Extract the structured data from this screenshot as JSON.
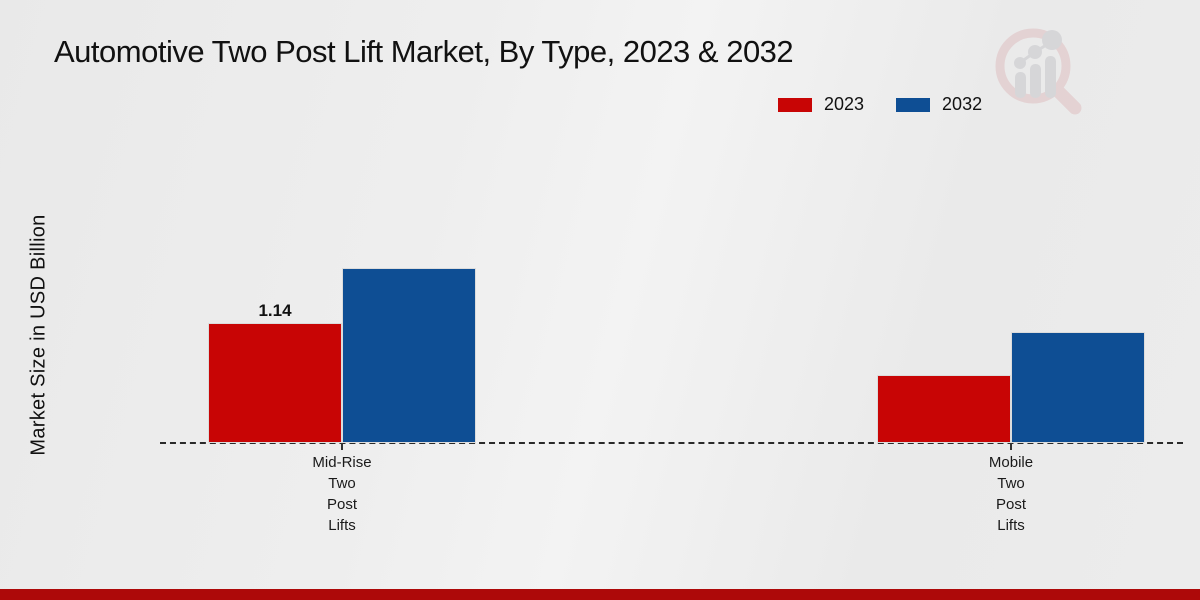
{
  "chart_data": {
    "type": "bar",
    "title": "Automotive Two Post Lift Market, By Type, 2023 & 2032",
    "ylabel": "Market Size in USD Billion",
    "xlabel": "",
    "categories": [
      "Mid-Rise Two Post Lifts",
      "Mobile Two Post Lifts"
    ],
    "category_label_lines": [
      [
        "Mid-Rise",
        "Two",
        "Post",
        "Lifts"
      ],
      [
        "Mobile",
        "Two",
        "Post",
        "Lifts"
      ]
    ],
    "series": [
      {
        "name": "2023",
        "color": "#c80505",
        "values": [
          1.14,
          0.65
        ],
        "labels": [
          "1.14",
          ""
        ]
      },
      {
        "name": "2032",
        "color": "#0e4e94",
        "values": [
          1.66,
          1.05
        ],
        "labels": [
          "",
          ""
        ]
      }
    ],
    "ylim": [
      0,
      1.9
    ],
    "grid": false,
    "legend_position": "top-right",
    "baseline_style": "dashed",
    "annotations": [
      {
        "text": "1.14",
        "series": "2023",
        "category": "Mid-Rise Two Post Lifts"
      }
    ]
  },
  "watermark": {
    "icon": "market-research-magnifier-logo"
  },
  "footer": {
    "accent_color": "#ad0909"
  }
}
